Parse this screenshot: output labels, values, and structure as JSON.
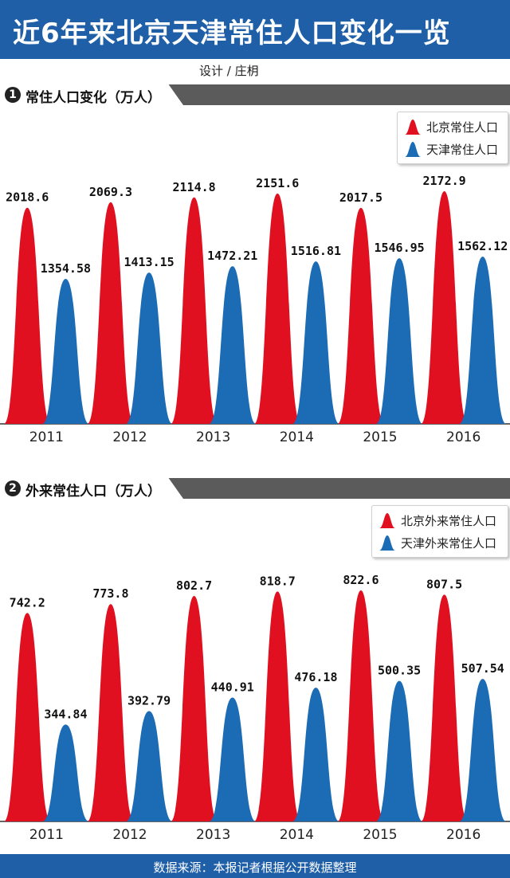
{
  "title": "近6年来北京天津常住人口变化一览",
  "credit": "设计 / 庄枂",
  "footer": "数据来源：本报记者根据公开数据整理",
  "colors": {
    "beijing": "#e01020",
    "tianjin": "#1b6bb5",
    "header_blue": "#1f5fa8",
    "section_gray": "#5b5b5b"
  },
  "sections": [
    {
      "num": "1",
      "title": "常住人口变化（万人）"
    },
    {
      "num": "2",
      "title": "外来常住人口（万人）"
    }
  ],
  "chart_data": [
    {
      "type": "bar",
      "title": "常住人口变化（万人）",
      "categories": [
        "2011",
        "2012",
        "2013",
        "2014",
        "2015",
        "2016"
      ],
      "series": [
        {
          "name": "北京常住人口",
          "values": [
            2018.6,
            2069.3,
            2114.8,
            2151.6,
            2017.5,
            2172.9
          ],
          "labels": [
            "2018.6",
            "2069.3",
            "2114.8",
            "2151.6",
            "2017.5",
            "2172.9"
          ]
        },
        {
          "name": "天津常住人口",
          "values": [
            1354.58,
            1413.15,
            1472.21,
            1516.81,
            1546.95,
            1562.12
          ],
          "labels": [
            "1354.58",
            "1413.15",
            "1472.21",
            "1516.81",
            "1546.95",
            "1562.12"
          ]
        }
      ],
      "legend": "top-right"
    },
    {
      "type": "bar",
      "title": "外来常住人口（万人）",
      "categories": [
        "2011",
        "2012",
        "2013",
        "2014",
        "2015",
        "2016"
      ],
      "series": [
        {
          "name": "北京外来常住人口",
          "values": [
            742.2,
            773.8,
            802.7,
            818.7,
            822.6,
            807.5
          ],
          "labels": [
            "742.2",
            "773.8",
            "802.7",
            "818.7",
            "822.6",
            "807.5"
          ]
        },
        {
          "name": "天津外来常住人口",
          "values": [
            344.84,
            392.79,
            440.91,
            476.18,
            500.35,
            507.54
          ],
          "labels": [
            "344.84",
            "392.79",
            "440.91",
            "476.18",
            "500.35",
            "507.54"
          ]
        }
      ],
      "legend": "top-right"
    }
  ]
}
